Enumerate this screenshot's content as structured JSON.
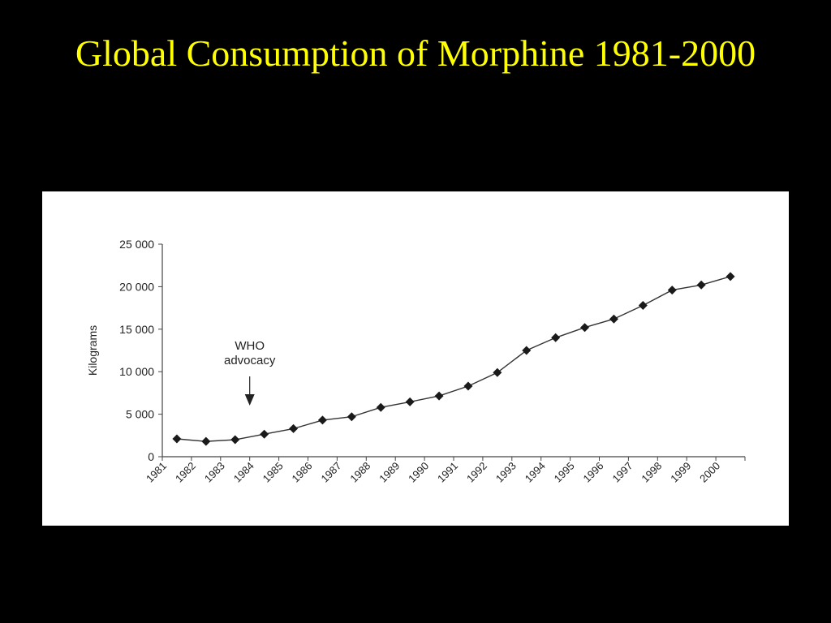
{
  "slide": {
    "title": "Global Consumption of Morphine 1981-2000",
    "background": "#000000",
    "title_color": "#ffff00"
  },
  "chart_data": {
    "type": "line",
    "title": "",
    "xlabel": "",
    "ylabel": "Kilograms",
    "ylim": [
      0,
      25000
    ],
    "y_ticks": [
      0,
      5000,
      10000,
      15000,
      20000,
      25000
    ],
    "y_tick_labels": [
      "0",
      "5 000",
      "10 000",
      "15 000",
      "20 000",
      "25 000"
    ],
    "categories": [
      "1981",
      "1982",
      "1983",
      "1984",
      "1985",
      "1986",
      "1987",
      "1988",
      "1989",
      "1990",
      "1991",
      "1992",
      "1993",
      "1994",
      "1995",
      "1996",
      "1997",
      "1998",
      "1999",
      "2000"
    ],
    "series": [
      {
        "values": [
          2100,
          1800,
          2000,
          2650,
          3300,
          4300,
          4700,
          5800,
          6450,
          7150,
          8300,
          9900,
          12500,
          14000,
          15200,
          16200,
          17800,
          19600,
          20200,
          21200
        ]
      }
    ],
    "grid": false,
    "line_color": "#333333",
    "marker_color": "#1a1a1a",
    "annotation": {
      "text_lines": [
        "WHO",
        "advocacy"
      ],
      "arrow": "down",
      "at_year": "1984"
    }
  }
}
